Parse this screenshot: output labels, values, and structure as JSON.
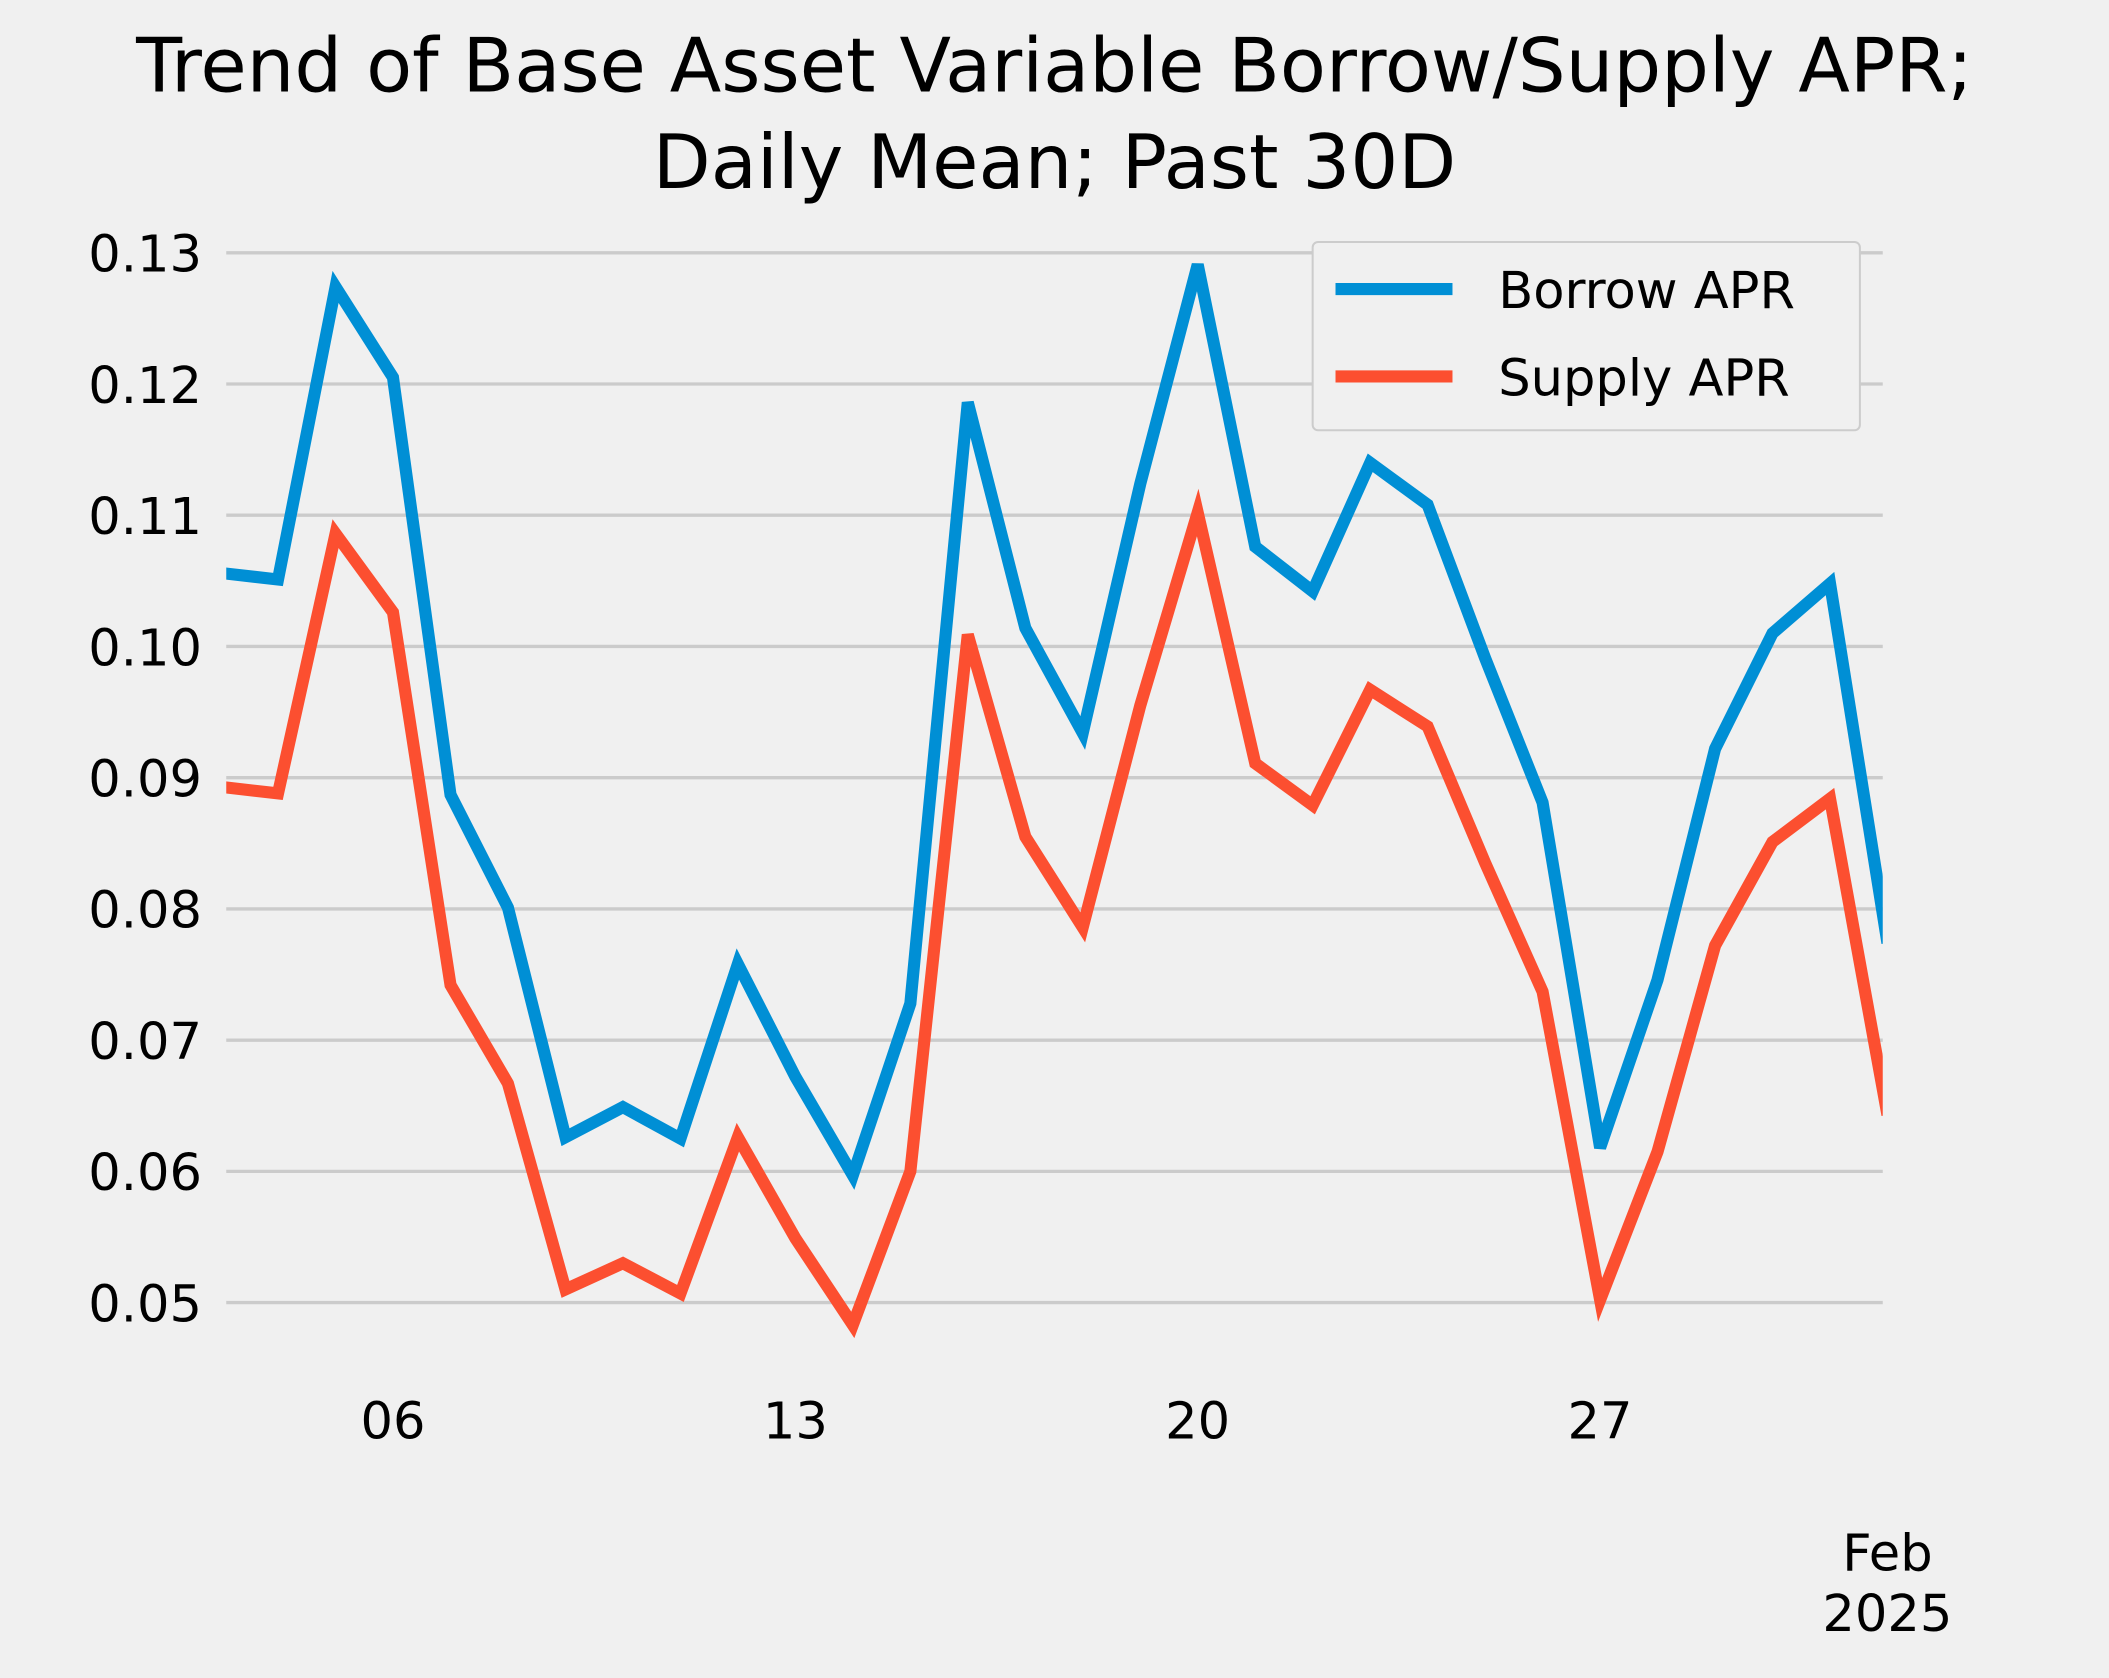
{
  "chart_data": {
    "type": "line",
    "title": "Trend of Base Asset Variable Borrow/Supply APR;\nDaily Mean; Past 30D",
    "title_lines": [
      "Trend of Base Asset Variable Borrow/Supply APR;",
      "Daily Mean; Past 30D"
    ],
    "xlabel": "",
    "ylabel": "",
    "x": [
      "2025-01-03",
      "2025-01-04",
      "2025-01-05",
      "2025-01-06",
      "2025-01-07",
      "2025-01-08",
      "2025-01-09",
      "2025-01-10",
      "2025-01-11",
      "2025-01-12",
      "2025-01-13",
      "2025-01-14",
      "2025-01-15",
      "2025-01-16",
      "2025-01-17",
      "2025-01-18",
      "2025-01-19",
      "2025-01-20",
      "2025-01-21",
      "2025-01-22",
      "2025-01-23",
      "2025-01-24",
      "2025-01-25",
      "2025-01-26",
      "2025-01-27",
      "2025-01-28",
      "2025-01-29",
      "2025-01-30",
      "2025-01-31",
      "2025-02-01"
    ],
    "series": [
      {
        "name": "Borrow APR",
        "color": "#008fd5",
        "values": [
          0.1056,
          0.1051,
          0.1274,
          0.1205,
          0.0887,
          0.0801,
          0.0626,
          0.0649,
          0.0625,
          0.0758,
          0.0672,
          0.0597,
          0.0728,
          0.1186,
          0.1014,
          0.0934,
          0.1124,
          0.1291,
          0.1076,
          0.1042,
          0.114,
          0.1108,
          0.0991,
          0.0881,
          0.0618,
          0.0746,
          0.0922,
          0.101,
          0.1048,
          0.0774
        ]
      },
      {
        "name": "Supply APR",
        "color": "#fc4f30",
        "values": [
          0.0893,
          0.0888,
          0.1086,
          0.1026,
          0.0742,
          0.0667,
          0.051,
          0.053,
          0.0507,
          0.0626,
          0.0549,
          0.0483,
          0.06,
          0.1009,
          0.0855,
          0.0786,
          0.0955,
          0.1102,
          0.0911,
          0.0879,
          0.0967,
          0.0939,
          0.0835,
          0.0737,
          0.0502,
          0.0615,
          0.0772,
          0.0851,
          0.0884,
          0.0643
        ]
      }
    ],
    "yticks": [
      "0.05",
      "0.06",
      "0.07",
      "0.08",
      "0.09",
      "0.10",
      "0.11",
      "0.12",
      "0.13"
    ],
    "ytick_values": [
      0.05,
      0.06,
      0.07,
      0.08,
      0.09,
      0.1,
      0.11,
      0.12,
      0.13
    ],
    "xticks": [
      {
        "label": "06",
        "day": 6
      },
      {
        "label": "13",
        "day": 13
      },
      {
        "label": "20",
        "day": 20
      },
      {
        "label": "27",
        "day": 27
      },
      {
        "label": "Feb\n2025",
        "lines": [
          "Feb",
          "2025"
        ],
        "day": 32
      }
    ],
    "ylim": [
      0.046,
      0.1324
    ],
    "xlim_days": [
      3.1,
      31.88
    ],
    "grid": "horizontal",
    "legend_position": "top-right"
  }
}
